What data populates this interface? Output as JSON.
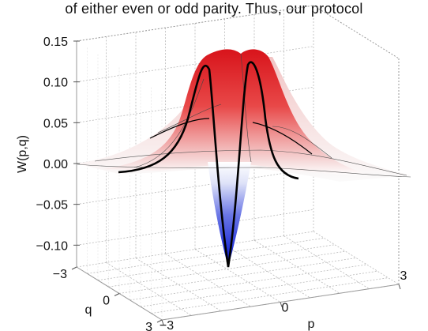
{
  "text_above_chart": "of either even or odd parity. Thus, our protocol",
  "chart_data": {
    "type": "surface",
    "zlabel": "W(p,q)",
    "xlabel": "p",
    "ylabel": "q",
    "z_ticks": [
      "0.15",
      "0.10",
      "0.05",
      "0.00",
      "−0.05",
      "−0.10"
    ],
    "z_tick_values": [
      0.15,
      0.1,
      0.05,
      0.0,
      -0.05,
      -0.1
    ],
    "p_ticks": [
      "−3",
      "0",
      "3"
    ],
    "p_tick_values": [
      -3,
      0,
      3
    ],
    "q_ticks": [
      "−3",
      "0",
      "3"
    ],
    "q_tick_values": [
      -3,
      0,
      3
    ],
    "zlim": [
      -0.13,
      0.15
    ],
    "plim": [
      -3,
      3
    ],
    "qlim": [
      -3,
      3
    ],
    "grid": true,
    "colormap": {
      "negative": "#1f2fd6",
      "zero": "#ffffff",
      "positive": "#d8141b"
    },
    "surface_peak": 0.135,
    "surface_minimum": -0.13,
    "cross_sections": [
      "black curve along p at q = 0",
      "black curve along q at p = 0"
    ]
  }
}
